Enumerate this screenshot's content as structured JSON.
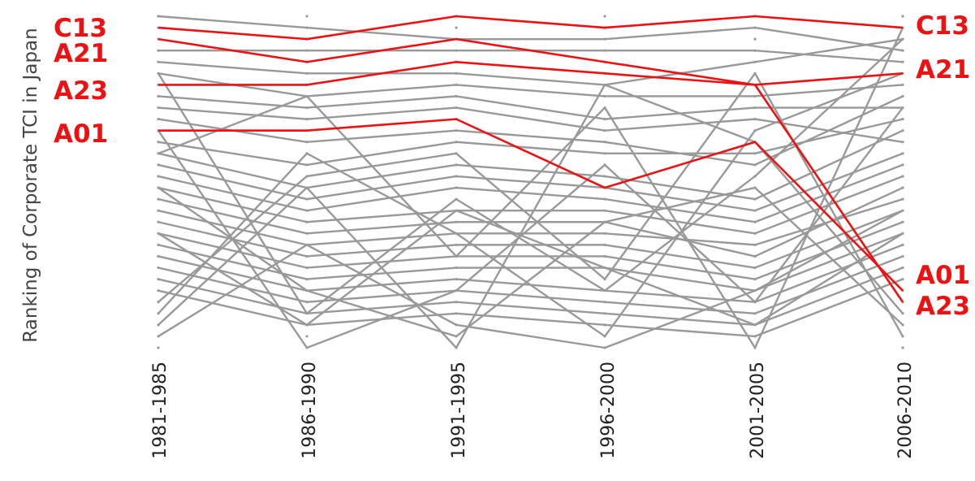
{
  "chart_data": {
    "type": "line",
    "ylabel": "Ranking of Corporate TCI in Japan",
    "x": [
      "1981-1985",
      "1986-1990",
      "1991-1995",
      "1996-2000",
      "2001-2005",
      "2006-2010"
    ],
    "y_direction": "rank, 1 at top",
    "ylim": [
      1,
      30
    ],
    "grid": false,
    "highlight_color": "#ee1111",
    "background_color": "#999999",
    "highlighted_series": [
      {
        "name": "C13",
        "values": [
          2,
          3,
          1,
          2,
          1,
          2
        ]
      },
      {
        "name": "A21",
        "values": [
          3,
          5,
          3,
          5,
          7,
          6
        ]
      },
      {
        "name": "A23",
        "values": [
          7,
          7,
          5,
          6,
          7,
          26
        ]
      },
      {
        "name": "A01",
        "values": [
          11,
          11,
          10,
          16,
          12,
          25
        ]
      }
    ],
    "background_series": [
      [
        1,
        2,
        3,
        3,
        2,
        4
      ],
      [
        4,
        4,
        4,
        4,
        4,
        5
      ],
      [
        5,
        6,
        6,
        7,
        5,
        3
      ],
      [
        6,
        8,
        7,
        8,
        8,
        7
      ],
      [
        8,
        9,
        8,
        10,
        9,
        9
      ],
      [
        9,
        10,
        9,
        11,
        10,
        12
      ],
      [
        10,
        12,
        11,
        12,
        14,
        8
      ],
      [
        12,
        14,
        12,
        13,
        13,
        10
      ],
      [
        13,
        16,
        14,
        15,
        17,
        11
      ],
      [
        14,
        17,
        15,
        16,
        18,
        13
      ],
      [
        15,
        18,
        16,
        17,
        19,
        14
      ],
      [
        16,
        19,
        18,
        18,
        20,
        15
      ],
      [
        17,
        20,
        19,
        19,
        22,
        16
      ],
      [
        18,
        21,
        20,
        20,
        21,
        17
      ],
      [
        19,
        22,
        21,
        21,
        23,
        18
      ],
      [
        20,
        23,
        22,
        22,
        24,
        19
      ],
      [
        21,
        24,
        23,
        23,
        25,
        20
      ],
      [
        22,
        25,
        24,
        25,
        26,
        21
      ],
      [
        23,
        26,
        25,
        26,
        27,
        22
      ],
      [
        24,
        27,
        26,
        27,
        28,
        23
      ],
      [
        25,
        28,
        27,
        28,
        29,
        24
      ],
      [
        6,
        27,
        17,
        25,
        15,
        3
      ],
      [
        13,
        8,
        22,
        9,
        30,
        2
      ],
      [
        28,
        16,
        30,
        7,
        12,
        27
      ],
      [
        26,
        15,
        13,
        24,
        6,
        29
      ],
      [
        11,
        30,
        25,
        14,
        26,
        9
      ],
      [
        27,
        13,
        20,
        29,
        11,
        6
      ],
      [
        20,
        28,
        18,
        23,
        28,
        20
      ],
      [
        16,
        25,
        29,
        19,
        16,
        28
      ],
      [
        29,
        21,
        28,
        30,
        25,
        18
      ]
    ]
  },
  "end_labels_left": [
    "C13",
    "A21",
    "A23",
    "A01"
  ],
  "end_labels_right": [
    "C13",
    "A21",
    "A01",
    "A23"
  ]
}
